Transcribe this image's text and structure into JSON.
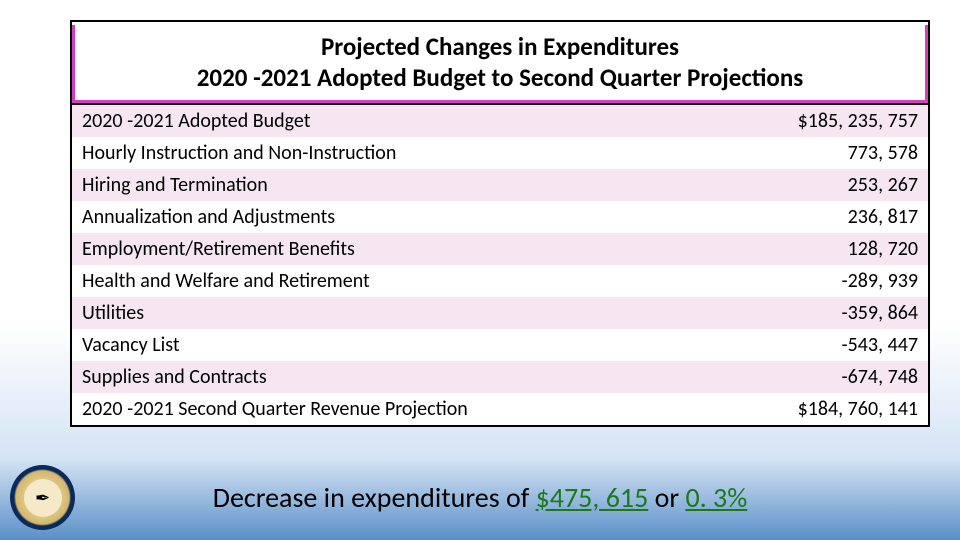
{
  "header": {
    "line1": "Projected Changes in Expenditures",
    "line2": "2020 -2021 Adopted Budget to Second Quarter Projections"
  },
  "table": {
    "rows": [
      {
        "label": "2020 -2021 Adopted Budget",
        "value": "$185, 235, 757"
      },
      {
        "label": "Hourly Instruction and Non-Instruction",
        "value": "773, 578"
      },
      {
        "label": "Hiring and Termination",
        "value": "253, 267"
      },
      {
        "label": "Annualization and Adjustments",
        "value": "236, 817"
      },
      {
        "label": "Employment/Retirement Benefits",
        "value": "128, 720"
      },
      {
        "label": "Health and Welfare and Retirement",
        "value": "-289, 939"
      },
      {
        "label": "Utilities",
        "value": "-359, 864"
      },
      {
        "label": "Vacancy List",
        "value": "-543, 447"
      },
      {
        "label": "Supplies and Contracts",
        "value": "-674, 748"
      },
      {
        "label": "2020 -2021 Second Quarter Revenue Projection",
        "value": "$184, 760, 141"
      }
    ],
    "row_colors": {
      "odd": "#f5e6f2",
      "even": "#ffffff"
    },
    "header_bg": "#d63fb9"
  },
  "footer": {
    "prefix": "Decrease in expenditures of ",
    "amount": "$475, 615",
    "middle": " or ",
    "percent": "0. 3%"
  },
  "seal": {
    "glyph": "✒",
    "outer_color": "#0a2a5c",
    "ring_color": "#d4b76a",
    "inner_color": "#f5e9c9"
  }
}
